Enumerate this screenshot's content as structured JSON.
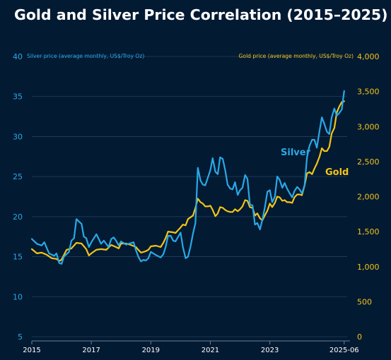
{
  "chart_data": {
    "type": "line",
    "title": "Gold and Silver Price Correlation (2015–2025)",
    "left_axis_label": "Silver price (average monthly, US$/Troy Oz)",
    "right_axis_label": "Gold price (average monthly, US$/Troy Oz)",
    "left_axis": {
      "min": 5,
      "max": 40,
      "ticks": [
        "5",
        "10",
        "15",
        "20",
        "25",
        "30",
        "35",
        "40"
      ]
    },
    "right_axis": {
      "min": 0,
      "max": 4000,
      "ticks": [
        "0",
        "500",
        "1,000",
        "1,500",
        "2,000",
        "2,500",
        "3,000",
        "3,500",
        "4,000"
      ]
    },
    "x_range": [
      2015,
      2025.6
    ],
    "x_ticks": [
      {
        "x": 2015,
        "label": "2015"
      },
      {
        "x": 2017,
        "label": "2017"
      },
      {
        "x": 2019,
        "label": "2019"
      },
      {
        "x": 2021,
        "label": "2021"
      },
      {
        "x": 2023,
        "label": "2023"
      },
      {
        "x": 2025.5,
        "label": "2025-06"
      }
    ],
    "grid": true,
    "colors": {
      "silver": "#29a9e6",
      "gold": "#f2c418",
      "background": "#031a33",
      "grid": "#24405e",
      "text": "#ffffff"
    },
    "series": [
      {
        "name": "Silver",
        "axis": "left",
        "points": [
          [
            2015.0,
            17.2
          ],
          [
            2015.17,
            16.6
          ],
          [
            2015.33,
            16.4
          ],
          [
            2015.42,
            16.8
          ],
          [
            2015.58,
            15.4
          ],
          [
            2015.75,
            15.1
          ],
          [
            2015.83,
            15.4
          ],
          [
            2015.92,
            14.2
          ],
          [
            2016.0,
            14.1
          ],
          [
            2016.08,
            15.0
          ],
          [
            2016.25,
            15.6
          ],
          [
            2016.33,
            17.0
          ],
          [
            2016.42,
            17.3
          ],
          [
            2016.5,
            19.7
          ],
          [
            2016.58,
            19.4
          ],
          [
            2016.67,
            19.1
          ],
          [
            2016.75,
            17.5
          ],
          [
            2016.83,
            17.3
          ],
          [
            2016.92,
            16.2
          ],
          [
            2017.0,
            16.8
          ],
          [
            2017.17,
            17.8
          ],
          [
            2017.25,
            17.2
          ],
          [
            2017.33,
            16.6
          ],
          [
            2017.42,
            17.0
          ],
          [
            2017.58,
            16.2
          ],
          [
            2017.67,
            17.2
          ],
          [
            2017.75,
            17.4
          ],
          [
            2017.83,
            17.0
          ],
          [
            2017.92,
            16.4
          ],
          [
            2018.0,
            16.9
          ],
          [
            2018.17,
            16.5
          ],
          [
            2018.25,
            16.6
          ],
          [
            2018.42,
            16.8
          ],
          [
            2018.5,
            15.8
          ],
          [
            2018.58,
            15.0
          ],
          [
            2018.67,
            14.4
          ],
          [
            2018.75,
            14.6
          ],
          [
            2018.83,
            14.5
          ],
          [
            2018.92,
            14.8
          ],
          [
            2019.0,
            15.6
          ],
          [
            2019.17,
            15.2
          ],
          [
            2019.33,
            14.9
          ],
          [
            2019.42,
            15.3
          ],
          [
            2019.5,
            16.2
          ],
          [
            2019.58,
            17.6
          ],
          [
            2019.67,
            17.6
          ],
          [
            2019.75,
            17.0
          ],
          [
            2019.83,
            16.9
          ],
          [
            2020.0,
            18.0
          ],
          [
            2020.08,
            16.2
          ],
          [
            2020.17,
            14.8
          ],
          [
            2020.25,
            15.0
          ],
          [
            2020.33,
            16.2
          ],
          [
            2020.42,
            17.9
          ],
          [
            2020.5,
            19.2
          ],
          [
            2020.58,
            26.1
          ],
          [
            2020.67,
            24.5
          ],
          [
            2020.75,
            24.0
          ],
          [
            2020.83,
            23.9
          ],
          [
            2021.0,
            25.8
          ],
          [
            2021.08,
            27.3
          ],
          [
            2021.17,
            25.6
          ],
          [
            2021.25,
            25.3
          ],
          [
            2021.33,
            27.4
          ],
          [
            2021.42,
            27.2
          ],
          [
            2021.5,
            25.8
          ],
          [
            2021.58,
            24.0
          ],
          [
            2021.67,
            23.5
          ],
          [
            2021.75,
            23.4
          ],
          [
            2021.83,
            24.3
          ],
          [
            2021.92,
            22.7
          ],
          [
            2022.0,
            23.3
          ],
          [
            2022.08,
            23.6
          ],
          [
            2022.17,
            25.2
          ],
          [
            2022.25,
            24.7
          ],
          [
            2022.33,
            21.5
          ],
          [
            2022.42,
            21.4
          ],
          [
            2022.5,
            19.0
          ],
          [
            2022.58,
            19.2
          ],
          [
            2022.67,
            18.4
          ],
          [
            2022.75,
            19.6
          ],
          [
            2022.83,
            21.1
          ],
          [
            2022.92,
            23.1
          ],
          [
            2023.0,
            23.3
          ],
          [
            2023.08,
            21.8
          ],
          [
            2023.17,
            22.5
          ],
          [
            2023.25,
            25.0
          ],
          [
            2023.33,
            24.6
          ],
          [
            2023.42,
            23.6
          ],
          [
            2023.5,
            24.2
          ],
          [
            2023.58,
            23.5
          ],
          [
            2023.67,
            22.9
          ],
          [
            2023.75,
            22.4
          ],
          [
            2023.83,
            23.2
          ],
          [
            2023.92,
            23.7
          ],
          [
            2024.0,
            23.4
          ],
          [
            2024.08,
            22.9
          ],
          [
            2024.17,
            23.9
          ],
          [
            2024.25,
            27.4
          ],
          [
            2024.33,
            28.8
          ],
          [
            2024.42,
            29.6
          ],
          [
            2024.5,
            29.6
          ],
          [
            2024.58,
            28.6
          ],
          [
            2024.67,
            30.7
          ],
          [
            2024.75,
            32.4
          ],
          [
            2024.83,
            31.6
          ],
          [
            2024.92,
            30.6
          ],
          [
            2025.0,
            30.3
          ],
          [
            2025.08,
            32.4
          ],
          [
            2025.17,
            33.5
          ],
          [
            2025.25,
            32.6
          ],
          [
            2025.33,
            32.9
          ],
          [
            2025.42,
            33.4
          ],
          [
            2025.5,
            35.7
          ]
        ]
      },
      {
        "name": "Gold",
        "axis": "right",
        "points": [
          [
            2015.0,
            1250
          ],
          [
            2015.17,
            1190
          ],
          [
            2015.33,
            1200
          ],
          [
            2015.5,
            1170
          ],
          [
            2015.67,
            1120
          ],
          [
            2015.83,
            1110
          ],
          [
            2015.92,
            1080
          ],
          [
            2016.0,
            1100
          ],
          [
            2016.17,
            1240
          ],
          [
            2016.33,
            1260
          ],
          [
            2016.5,
            1340
          ],
          [
            2016.67,
            1330
          ],
          [
            2016.83,
            1250
          ],
          [
            2016.92,
            1160
          ],
          [
            2017.0,
            1190
          ],
          [
            2017.17,
            1240
          ],
          [
            2017.33,
            1250
          ],
          [
            2017.5,
            1240
          ],
          [
            2017.67,
            1310
          ],
          [
            2017.83,
            1280
          ],
          [
            2017.92,
            1260
          ],
          [
            2018.0,
            1330
          ],
          [
            2018.17,
            1330
          ],
          [
            2018.33,
            1310
          ],
          [
            2018.5,
            1280
          ],
          [
            2018.58,
            1240
          ],
          [
            2018.67,
            1200
          ],
          [
            2018.83,
            1220
          ],
          [
            2018.92,
            1240
          ],
          [
            2019.0,
            1290
          ],
          [
            2019.17,
            1300
          ],
          [
            2019.33,
            1280
          ],
          [
            2019.42,
            1340
          ],
          [
            2019.5,
            1410
          ],
          [
            2019.58,
            1500
          ],
          [
            2019.75,
            1490
          ],
          [
            2019.83,
            1480
          ],
          [
            2020.0,
            1560
          ],
          [
            2020.08,
            1600
          ],
          [
            2020.17,
            1590
          ],
          [
            2020.25,
            1680
          ],
          [
            2020.42,
            1730
          ],
          [
            2020.5,
            1840
          ],
          [
            2020.58,
            1970
          ],
          [
            2020.67,
            1920
          ],
          [
            2020.75,
            1900
          ],
          [
            2020.83,
            1860
          ],
          [
            2020.92,
            1860
          ],
          [
            2021.0,
            1870
          ],
          [
            2021.08,
            1810
          ],
          [
            2021.17,
            1720
          ],
          [
            2021.25,
            1760
          ],
          [
            2021.33,
            1850
          ],
          [
            2021.42,
            1840
          ],
          [
            2021.5,
            1810
          ],
          [
            2021.58,
            1790
          ],
          [
            2021.67,
            1780
          ],
          [
            2021.75,
            1780
          ],
          [
            2021.83,
            1820
          ],
          [
            2021.92,
            1790
          ],
          [
            2022.0,
            1820
          ],
          [
            2022.08,
            1860
          ],
          [
            2022.17,
            1950
          ],
          [
            2022.25,
            1940
          ],
          [
            2022.33,
            1850
          ],
          [
            2022.42,
            1840
          ],
          [
            2022.5,
            1730
          ],
          [
            2022.58,
            1760
          ],
          [
            2022.67,
            1690
          ],
          [
            2022.75,
            1660
          ],
          [
            2022.83,
            1730
          ],
          [
            2022.92,
            1800
          ],
          [
            2023.0,
            1900
          ],
          [
            2023.08,
            1850
          ],
          [
            2023.17,
            1910
          ],
          [
            2023.25,
            2000
          ],
          [
            2023.33,
            1990
          ],
          [
            2023.42,
            1940
          ],
          [
            2023.5,
            1950
          ],
          [
            2023.58,
            1920
          ],
          [
            2023.67,
            1920
          ],
          [
            2023.75,
            1910
          ],
          [
            2023.83,
            1990
          ],
          [
            2023.92,
            2030
          ],
          [
            2024.0,
            2030
          ],
          [
            2024.08,
            2020
          ],
          [
            2024.17,
            2160
          ],
          [
            2024.25,
            2330
          ],
          [
            2024.33,
            2350
          ],
          [
            2024.42,
            2320
          ],
          [
            2024.5,
            2400
          ],
          [
            2024.58,
            2470
          ],
          [
            2024.67,
            2570
          ],
          [
            2024.75,
            2690
          ],
          [
            2024.83,
            2650
          ],
          [
            2024.92,
            2650
          ],
          [
            2025.0,
            2710
          ],
          [
            2025.08,
            2900
          ],
          [
            2025.17,
            2980
          ],
          [
            2025.25,
            3200
          ],
          [
            2025.33,
            3280
          ],
          [
            2025.42,
            3350
          ],
          [
            2025.5,
            3360
          ]
        ]
      }
    ],
    "annotations": [
      {
        "text": "Silver",
        "series": "Silver"
      },
      {
        "text": "Gold",
        "series": "Gold"
      }
    ]
  }
}
